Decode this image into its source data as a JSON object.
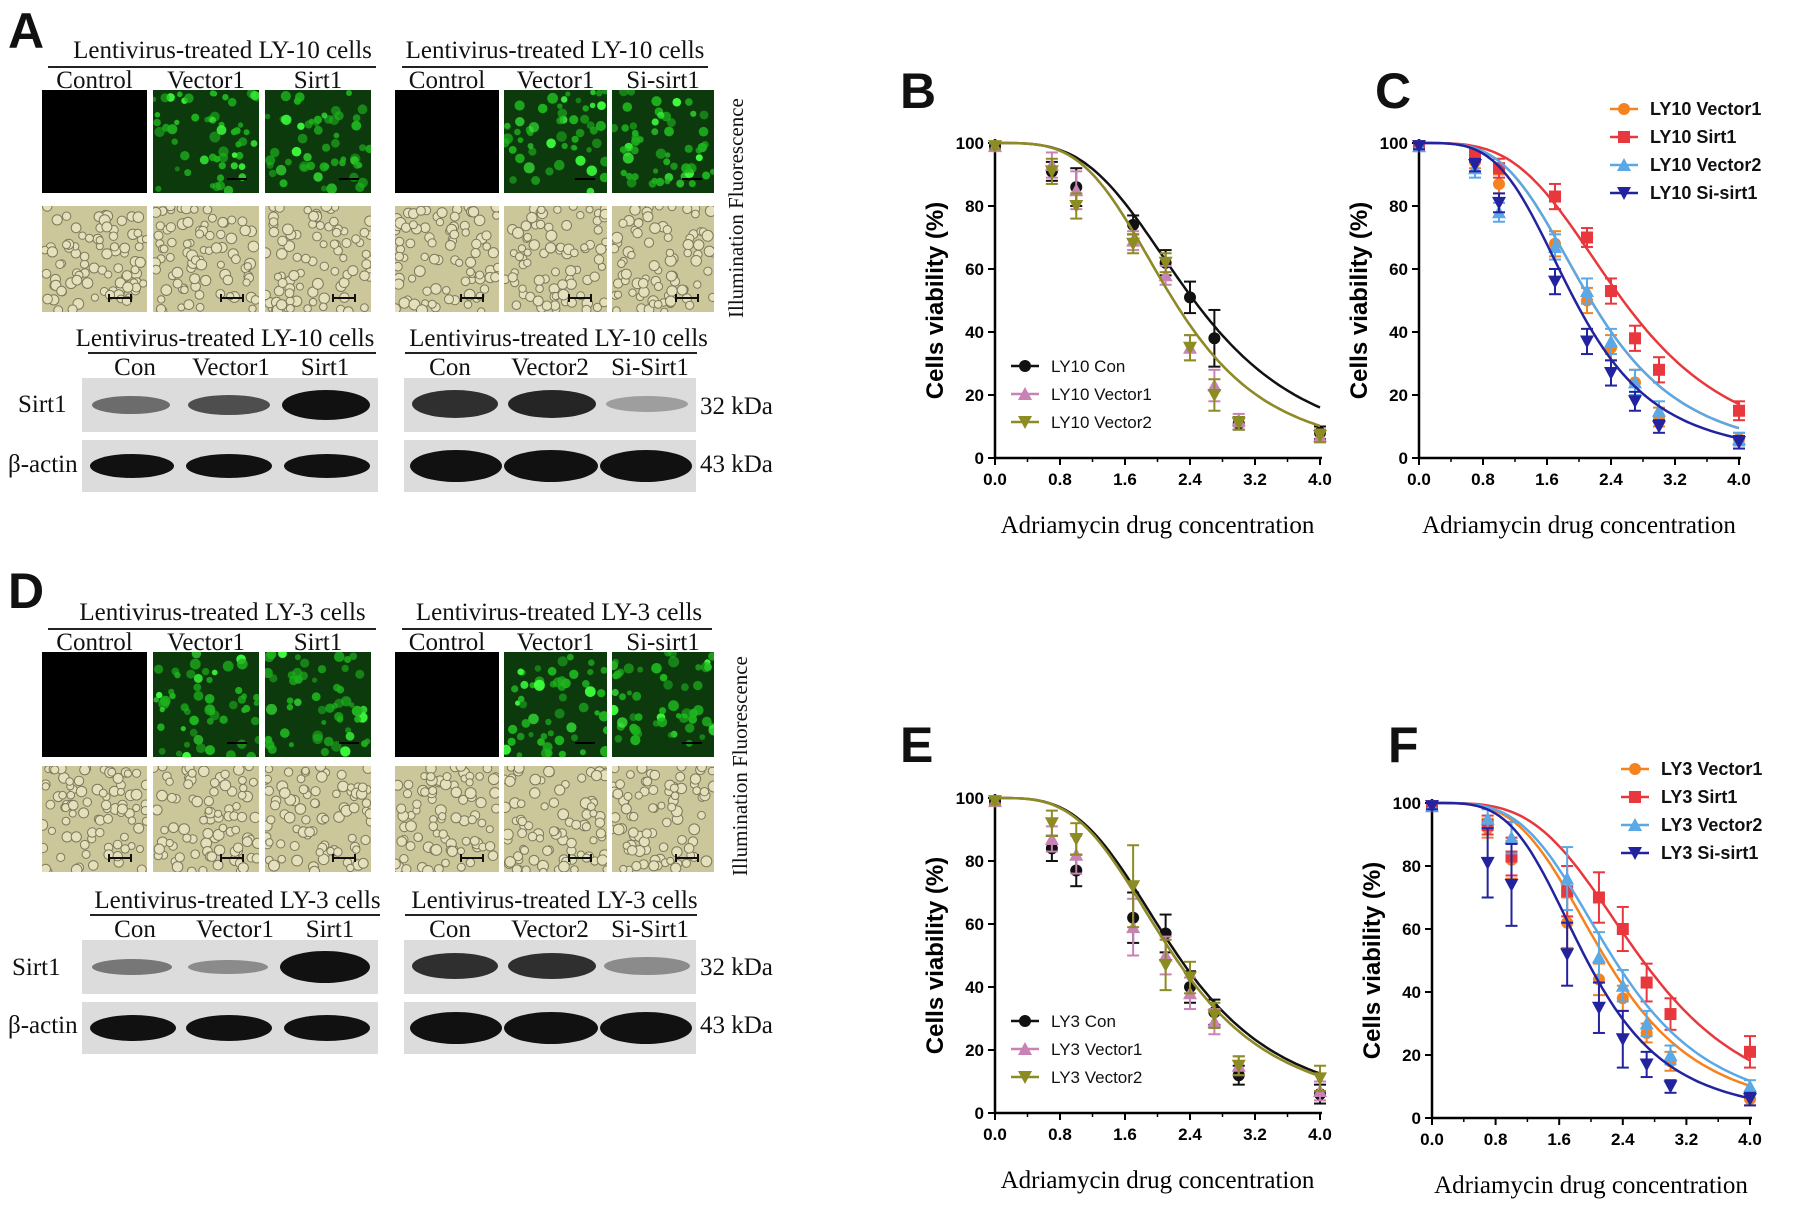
{
  "panels": {
    "A": {
      "label": "A",
      "micro_left": {
        "title": "Lentivirus-treated LY-10 cells",
        "cols": [
          "Control",
          "Vector1",
          "Sirt1"
        ]
      },
      "micro_right": {
        "title": "Lentivirus-treated LY-10 cells",
        "cols": [
          "Control",
          "Vector1",
          "Si-sirt1"
        ]
      },
      "side_label": "Illumination Fluorescence",
      "blot_left": {
        "title": "Lentivirus-treated LY-10 cells",
        "cols": [
          "Con",
          "Vector1",
          "Sirt1"
        ]
      },
      "blot_right": {
        "title": "Lentivirus-treated LY-10 cells",
        "cols": [
          "Con",
          "Vector2",
          "Si-Sirt1"
        ]
      },
      "row_labels": [
        "Sirt1",
        "β-actin"
      ],
      "sizes": [
        "32 kDa",
        "43 kDa"
      ],
      "band_strength": {
        "sirt1_left": [
          0.55,
          0.7,
          1.0
        ],
        "sirt1_right": [
          0.85,
          0.9,
          0.3
        ],
        "actin": [
          1,
          1,
          1
        ]
      }
    },
    "D": {
      "label": "D",
      "micro_left": {
        "title": "Lentivirus-treated LY-3 cells",
        "cols": [
          "Control",
          "Vector1",
          "Sirt1"
        ]
      },
      "micro_right": {
        "title": "Lentivirus-treated LY-3 cells",
        "cols": [
          "Control",
          "Vector1",
          "Si-sirt1"
        ]
      },
      "side_label": "Illumination Fluorescence",
      "blot_left": {
        "title": "Lentivirus-treated LY-3 cells",
        "cols": [
          "Con",
          "Vector1",
          "Sirt1"
        ]
      },
      "blot_right": {
        "title": "Lentivirus-treated LY-3 cells",
        "cols": [
          "Con",
          "Vector2",
          "Si-Sirt1"
        ]
      },
      "row_labels": [
        "Sirt1",
        "β-actin"
      ],
      "sizes": [
        "32 kDa",
        "43 kDa"
      ],
      "band_strength": {
        "sirt1_left": [
          0.5,
          0.4,
          1.0
        ],
        "sirt1_right": [
          0.85,
          0.85,
          0.4
        ],
        "actin": [
          1,
          1,
          1
        ]
      }
    }
  },
  "chart_data": [
    {
      "panel": "B",
      "type": "line",
      "xlabel": "Adriamycin drug concentration",
      "ylabel": "Cells viability (%)",
      "xlim": [
        0,
        4
      ],
      "ylim": [
        0,
        100
      ],
      "xticks": [
        "0.0",
        "0.8",
        "1.6",
        "2.4",
        "3.2",
        "4.0"
      ],
      "yticks": [
        "0",
        "20",
        "40",
        "60",
        "80",
        "100"
      ],
      "legend_position": "bottom-left",
      "legend_bold": false,
      "series": [
        {
          "name": "LY10 Con",
          "color": "#111111",
          "marker": "circle",
          "ic50": 2.45,
          "slope": 1.3,
          "x": [
            0,
            0.7,
            1,
            1.7,
            2.1,
            2.4,
            2.7,
            3,
            4
          ],
          "y": [
            99,
            91,
            86,
            74,
            62,
            51,
            38,
            11,
            8
          ],
          "err": [
            1,
            3,
            6,
            3,
            4,
            5,
            9,
            2,
            2
          ]
        },
        {
          "name": "LY10 Vector1",
          "color": "#c882b4",
          "marker": "triangle-up",
          "ic50": 2.2,
          "slope": 1.4,
          "x": [
            0,
            0.7,
            1,
            1.7,
            2.1,
            2.4,
            2.7,
            3,
            4
          ],
          "y": [
            99,
            93,
            85,
            69,
            58,
            35,
            23,
            12,
            7
          ],
          "err": [
            1,
            4,
            6,
            3,
            3,
            4,
            5,
            2,
            2
          ]
        },
        {
          "name": "LY10 Vector2",
          "color": "#8c8c23",
          "marker": "triangle-down",
          "ic50": 2.2,
          "slope": 1.4,
          "x": [
            0,
            0.7,
            1,
            1.7,
            2.1,
            2.4,
            2.7,
            3,
            4
          ],
          "y": [
            99,
            91,
            80,
            68,
            62,
            35,
            20,
            11,
            7
          ],
          "err": [
            1,
            4,
            4,
            3,
            3,
            4,
            5,
            2,
            2
          ]
        }
      ]
    },
    {
      "panel": "C",
      "type": "line",
      "xlabel": "Adriamycin drug concentration",
      "ylabel": "Cells viability (%)",
      "xlim": [
        0,
        4
      ],
      "ylim": [
        0,
        100
      ],
      "xticks": [
        "0.0",
        "0.8",
        "1.6",
        "2.4",
        "3.2",
        "4.0"
      ],
      "yticks": [
        "0",
        "20",
        "40",
        "60",
        "80",
        "100"
      ],
      "legend_position": "top-right",
      "legend_bold": true,
      "series": [
        {
          "name": "LY10 Vector1",
          "color": "#f5821e",
          "marker": "circle",
          "ic50": 2.15,
          "slope": 1.4,
          "x": [
            0,
            0.7,
            1,
            1.7,
            2.1,
            2.4,
            2.7,
            3,
            4
          ],
          "y": [
            99,
            94,
            87,
            68,
            50,
            35,
            24,
            13,
            6
          ],
          "err": [
            1,
            2,
            3,
            4,
            4,
            4,
            4,
            3,
            2
          ]
        },
        {
          "name": "LY10 Sirt1",
          "color": "#e8383d",
          "marker": "square",
          "ic50": 2.55,
          "slope": 1.35,
          "x": [
            0,
            0.7,
            1,
            1.7,
            2.1,
            2.4,
            2.7,
            3,
            4
          ],
          "y": [
            99,
            96,
            92,
            83,
            70,
            53,
            38,
            28,
            15
          ],
          "err": [
            1,
            2,
            3,
            4,
            3,
            4,
            4,
            4,
            3
          ]
        },
        {
          "name": "LY10 Vector2",
          "color": "#5aa8e6",
          "marker": "triangle-up",
          "ic50": 2.15,
          "slope": 1.4,
          "x": [
            0,
            0.7,
            1,
            1.7,
            2.1,
            2.4,
            2.7,
            3,
            4
          ],
          "y": [
            99,
            92,
            78,
            67,
            53,
            37,
            24,
            15,
            6
          ],
          "err": [
            1,
            3,
            3,
            4,
            4,
            4,
            4,
            3,
            2
          ]
        },
        {
          "name": "LY10 Si-sirt1",
          "color": "#2323a0",
          "marker": "triangle-down",
          "ic50": 1.95,
          "slope": 1.45,
          "x": [
            0,
            0.7,
            1,
            1.7,
            2.1,
            2.4,
            2.7,
            3,
            4
          ],
          "y": [
            99,
            93,
            81,
            56,
            37,
            27,
            18,
            10,
            5
          ],
          "err": [
            1,
            2,
            3,
            4,
            4,
            4,
            3,
            2,
            2
          ]
        }
      ]
    },
    {
      "panel": "E",
      "type": "line",
      "xlabel": "Adriamycin drug concentration",
      "ylabel": "Cells viability (%)",
      "xlim": [
        0,
        4
      ],
      "ylim": [
        0,
        100
      ],
      "xticks": [
        "0.0",
        "0.8",
        "1.6",
        "2.4",
        "3.2",
        "4.0"
      ],
      "yticks": [
        "0",
        "20",
        "40",
        "60",
        "80",
        "100"
      ],
      "legend_position": "bottom-left",
      "legend_bold": false,
      "series": [
        {
          "name": "LY3 Con",
          "color": "#111111",
          "marker": "circle",
          "ic50": 2.25,
          "slope": 1.3,
          "x": [
            0,
            0.7,
            1,
            1.7,
            2.1,
            2.4,
            2.7,
            3,
            4
          ],
          "y": [
            99,
            84,
            77,
            62,
            57,
            40,
            32,
            12,
            6
          ],
          "err": [
            1,
            4,
            5,
            8,
            6,
            5,
            4,
            3,
            3
          ]
        },
        {
          "name": "LY3 Vector1",
          "color": "#c882b4",
          "marker": "triangle-up",
          "ic50": 2.2,
          "slope": 1.3,
          "x": [
            0,
            0.7,
            1,
            1.7,
            2.1,
            2.4,
            2.7,
            3,
            4
          ],
          "y": [
            99,
            87,
            82,
            59,
            50,
            38,
            29,
            15,
            7
          ],
          "err": [
            1,
            4,
            6,
            9,
            6,
            5,
            4,
            3,
            3
          ]
        },
        {
          "name": "LY3 Vector2",
          "color": "#8c8c23",
          "marker": "triangle-down",
          "ic50": 2.2,
          "slope": 1.3,
          "x": [
            0,
            0.7,
            1,
            1.7,
            2.1,
            2.4,
            2.7,
            3,
            4
          ],
          "y": [
            99,
            92,
            87,
            72,
            47,
            43,
            31,
            15,
            11
          ],
          "err": [
            1,
            4,
            5,
            13,
            8,
            5,
            4,
            3,
            4
          ]
        }
      ]
    },
    {
      "panel": "F",
      "type": "line",
      "xlabel": "Adriamycin drug concentration",
      "ylabel": "Cells viability (%)",
      "xlim": [
        0,
        4
      ],
      "ylim": [
        0,
        100
      ],
      "xticks": [
        "0.0",
        "0.8",
        "1.6",
        "2.4",
        "3.2",
        "4.0"
      ],
      "yticks": [
        "0",
        "20",
        "40",
        "60",
        "80",
        "100"
      ],
      "legend_position": "top-right",
      "legend_bold": true,
      "series": [
        {
          "name": "LY3 Vector1",
          "color": "#f5821e",
          "marker": "circle",
          "ic50": 2.2,
          "slope": 1.4,
          "x": [
            0,
            0.7,
            1,
            1.7,
            2.1,
            2.4,
            2.7,
            3,
            4
          ],
          "y": [
            99,
            92,
            82,
            62,
            44,
            38,
            27,
            18,
            6
          ],
          "err": [
            1,
            3,
            6,
            8,
            5,
            4,
            3,
            3,
            2
          ]
        },
        {
          "name": "LY3 Sirt1",
          "color": "#e8383d",
          "marker": "square",
          "ic50": 2.65,
          "slope": 1.4,
          "x": [
            0,
            0.7,
            1,
            1.7,
            2.1,
            2.4,
            2.7,
            3,
            4
          ],
          "y": [
            99,
            93,
            83,
            72,
            70,
            60,
            43,
            33,
            21
          ],
          "err": [
            1,
            3,
            6,
            8,
            8,
            7,
            6,
            5,
            5
          ]
        },
        {
          "name": "LY3 Vector2",
          "color": "#5aa8e6",
          "marker": "triangle-up",
          "ic50": 2.3,
          "slope": 1.4,
          "x": [
            0,
            0.7,
            1,
            1.7,
            2.1,
            2.4,
            2.7,
            3,
            4
          ],
          "y": [
            99,
            95,
            89,
            76,
            51,
            42,
            30,
            20,
            10
          ],
          "err": [
            1,
            3,
            5,
            10,
            8,
            5,
            4,
            3,
            2
          ]
        },
        {
          "name": "LY3 Si-sirt1",
          "color": "#2323a0",
          "marker": "triangle-down",
          "ic50": 1.95,
          "slope": 1.45,
          "x": [
            0,
            0.7,
            1,
            1.7,
            2.1,
            2.4,
            2.7,
            3,
            4
          ],
          "y": [
            99,
            81,
            74,
            52,
            35,
            25,
            17,
            10,
            6
          ],
          "err": [
            1,
            11,
            13,
            10,
            8,
            9,
            4,
            2,
            2
          ]
        }
      ]
    }
  ]
}
